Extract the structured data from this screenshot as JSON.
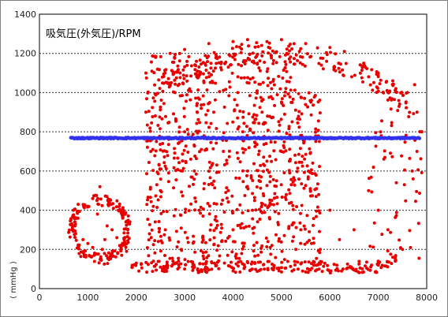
{
  "chart_data": {
    "type": "scatter",
    "title": "吸気圧(外気圧)/RPM",
    "ylabel": "( mmHg )",
    "xlabel": "",
    "xlim": [
      0,
      8000
    ],
    "ylim": [
      0,
      1400
    ],
    "xticks": [
      0,
      1000,
      2000,
      3000,
      4000,
      5000,
      6000,
      7000,
      8000
    ],
    "yticks": [
      0,
      200,
      400,
      600,
      800,
      1000,
      1200,
      1400
    ],
    "grid": "horizontal dashed",
    "series": [
      {
        "color": "#e60000",
        "description_points": [
          [
            800,
            430
          ],
          [
            700,
            400
          ],
          [
            650,
            350
          ],
          [
            680,
            300
          ],
          [
            750,
            280
          ],
          [
            900,
            250
          ],
          [
            1000,
            230
          ],
          [
            1100,
            210
          ],
          [
            1300,
            200
          ],
          [
            1500,
            180
          ],
          [
            1700,
            170
          ],
          [
            1800,
            190
          ],
          [
            1600,
            260
          ],
          [
            1400,
            320
          ],
          [
            1200,
            380
          ],
          [
            1000,
            420
          ],
          [
            1100,
            460
          ],
          [
            1250,
            520
          ],
          [
            1500,
            300
          ],
          [
            1350,
            250
          ],
          [
            2000,
            130
          ],
          [
            2500,
            110
          ],
          [
            3000,
            100
          ],
          [
            3500,
            95
          ],
          [
            4000,
            90
          ],
          [
            4500,
            88
          ],
          [
            5000,
            85
          ],
          [
            5500,
            85
          ],
          [
            6000,
            88
          ],
          [
            6500,
            95
          ],
          [
            7000,
            120
          ],
          [
            7300,
            160
          ],
          [
            7500,
            200
          ],
          [
            2200,
            1100
          ],
          [
            2400,
            1180
          ],
          [
            2700,
            1200
          ],
          [
            3000,
            1220
          ],
          [
            3500,
            1250
          ],
          [
            4000,
            1260
          ],
          [
            4300,
            1270
          ],
          [
            4700,
            1260
          ],
          [
            5000,
            1270
          ],
          [
            5500,
            1250
          ],
          [
            6000,
            1230
          ],
          [
            6300,
            1210
          ],
          [
            6700,
            1150
          ],
          [
            7000,
            1100
          ],
          [
            7300,
            1060
          ],
          [
            7600,
            1000
          ],
          [
            7800,
            900
          ],
          [
            7900,
            800
          ],
          [
            7800,
            700
          ],
          [
            7700,
            600
          ],
          [
            2200,
            900
          ],
          [
            2300,
            700
          ],
          [
            2500,
            500
          ],
          [
            2600,
            300
          ],
          [
            2800,
            1000
          ],
          [
            3000,
            800
          ],
          [
            3200,
            600
          ],
          [
            3300,
            400
          ],
          [
            3500,
            1100
          ],
          [
            3600,
            900
          ],
          [
            3800,
            700
          ],
          [
            3900,
            500
          ],
          [
            4000,
            300
          ],
          [
            4100,
            1000
          ],
          [
            4200,
            800
          ],
          [
            4300,
            600
          ],
          [
            4400,
            400
          ],
          [
            4500,
            1150
          ],
          [
            4600,
            900
          ],
          [
            4700,
            650
          ],
          [
            4800,
            450
          ],
          [
            4900,
            550
          ],
          [
            5000,
            700
          ],
          [
            5100,
            480
          ],
          [
            5200,
            950
          ],
          [
            5400,
            300
          ],
          [
            5600,
            500
          ],
          [
            5800,
            200
          ],
          [
            6000,
            400
          ],
          [
            6200,
            250
          ],
          [
            6500,
            300
          ],
          [
            6800,
            500
          ],
          [
            7000,
            400
          ],
          [
            7200,
            300
          ]
        ]
      },
      {
        "color": "#3333ee",
        "xrange": [
          650,
          7850
        ],
        "y": 768
      }
    ]
  }
}
